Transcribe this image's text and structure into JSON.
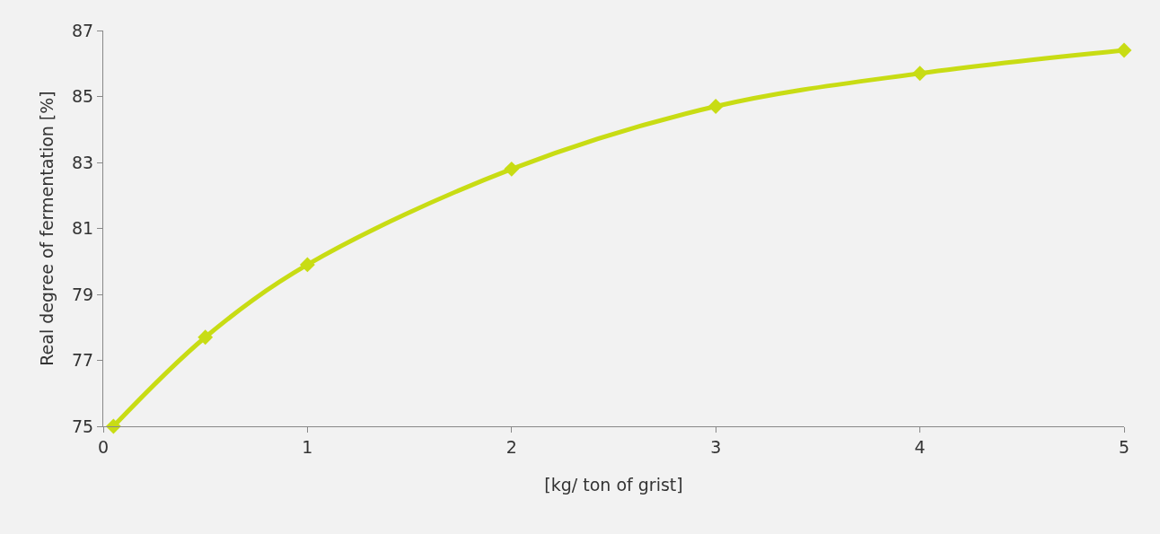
{
  "chart_data": {
    "type": "line",
    "xlabel": "[kg/ ton of grist]",
    "ylabel": "Real degree of fermentation [%]",
    "x": [
      0.05,
      0.5,
      1,
      2,
      3,
      4,
      5
    ],
    "series": [
      {
        "color": "#c8dc14",
        "values": [
          75,
          77.7,
          79.9,
          82.8,
          84.7,
          85.7,
          86.4
        ]
      }
    ],
    "xlim": [
      0,
      5
    ],
    "xticks": [
      0,
      1,
      2,
      3,
      4,
      5
    ],
    "ylim": [
      75,
      87
    ],
    "yticks": [
      75,
      77,
      79,
      81,
      83,
      85,
      87
    ],
    "grid": false,
    "legend": false,
    "marker": "diamond",
    "line_style": "solid"
  }
}
